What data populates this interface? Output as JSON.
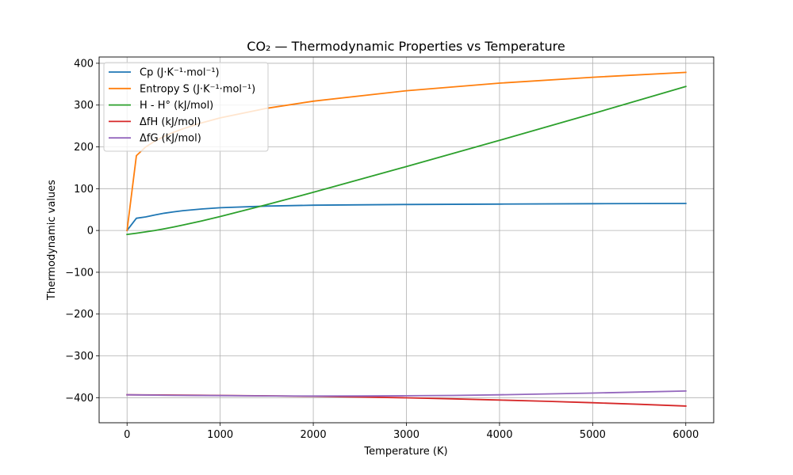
{
  "chart_data": {
    "type": "line",
    "title": "CO₂ — Thermodynamic Properties vs Temperature",
    "xlabel": "Temperature (K)",
    "ylabel": "Thermodynamic values",
    "xlim": [
      -300,
      6300
    ],
    "ylim": [
      -460,
      415
    ],
    "xticks": [
      0,
      1000,
      2000,
      3000,
      4000,
      5000,
      6000
    ],
    "yticks": [
      -400,
      -300,
      -200,
      -100,
      0,
      100,
      200,
      300,
      400
    ],
    "xtick_labels": [
      "0",
      "1000",
      "2000",
      "3000",
      "4000",
      "5000",
      "6000"
    ],
    "ytick_labels": [
      "−400",
      "−300",
      "−200",
      "−100",
      "0",
      "100",
      "200",
      "300",
      "400"
    ],
    "grid": true,
    "legend_position": "top-left",
    "series": [
      {
        "name": "Cp (J·K⁻¹·mol⁻¹)",
        "color": "#1f77b4",
        "x": [
          0,
          100,
          200,
          300,
          400,
          500,
          600,
          800,
          1000,
          1500,
          2000,
          3000,
          4000,
          5000,
          6000
        ],
        "y": [
          0,
          29.2,
          32.4,
          37.2,
          41.3,
          44.6,
          47.3,
          51.4,
          54.3,
          58.4,
          60.4,
          62.2,
          63.2,
          64.0,
          64.7
        ]
      },
      {
        "name": "Entropy S (J·K⁻¹·mol⁻¹)",
        "color": "#ff7f0e",
        "x": [
          0,
          100,
          200,
          300,
          400,
          500,
          600,
          800,
          1000,
          1500,
          2000,
          3000,
          4000,
          5000,
          6000
        ],
        "y": [
          0,
          179.1,
          199.9,
          214.0,
          225.3,
          234.9,
          243.3,
          257.5,
          269.3,
          292.2,
          309.3,
          334.4,
          352.5,
          366.6,
          378.2
        ]
      },
      {
        "name": "H - H° (kJ/mol)",
        "color": "#2ca02c",
        "x": [
          0,
          100,
          200,
          300,
          400,
          500,
          600,
          800,
          1000,
          1500,
          2000,
          3000,
          4000,
          5000,
          6000
        ],
        "y": [
          -9.4,
          -6.5,
          -3.4,
          0.1,
          4.0,
          8.3,
          12.9,
          22.8,
          33.4,
          61.7,
          91.4,
          152.9,
          215.6,
          279.3,
          344.4
        ]
      },
      {
        "name": "ΔfH (kJ/mol)",
        "color": "#d62728",
        "x": [
          0,
          500,
          1000,
          1500,
          2000,
          2500,
          3000,
          3500,
          4000,
          4500,
          5000,
          5500,
          6000
        ],
        "y": [
          -393.2,
          -393.7,
          -394.6,
          -395.6,
          -396.8,
          -398.4,
          -400.4,
          -402.8,
          -405.6,
          -408.6,
          -412.0,
          -415.9,
          -420.0
        ]
      },
      {
        "name": "ΔfG (kJ/mol)",
        "color": "#9467bd",
        "x": [
          0,
          500,
          1000,
          1500,
          2000,
          2500,
          3000,
          3500,
          4000,
          4500,
          5000,
          5500,
          6000
        ],
        "y": [
          -393.2,
          -394.4,
          -395.0,
          -395.8,
          -396.2,
          -396.0,
          -395.5,
          -394.6,
          -393.1,
          -391.1,
          -388.9,
          -386.5,
          -384.0
        ]
      }
    ]
  }
}
